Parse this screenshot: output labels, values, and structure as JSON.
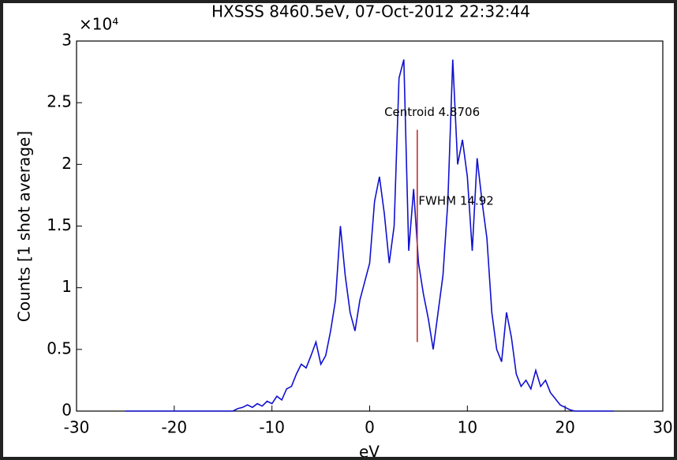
{
  "chart_data": {
    "type": "line",
    "title": "HXSSS  8460.5eV, 07-Oct-2012 22:32:44",
    "x_label": "eV",
    "y_label": "Counts [1 shot average]",
    "y_multiplier": "×10⁴",
    "x": [
      -25,
      -24.5,
      -24,
      -23.5,
      -23,
      -22.5,
      -22,
      -21.5,
      -21,
      -20.5,
      -20,
      -19.5,
      -19,
      -18.5,
      -18,
      -17.5,
      -17,
      -16.5,
      -16,
      -15.5,
      -15,
      -14.5,
      -14,
      -13.5,
      -13,
      -12.5,
      -12,
      -11.5,
      -11,
      -10.5,
      -10,
      -9.5,
      -9,
      -8.5,
      -8,
      -7.5,
      -7,
      -6.5,
      -6,
      -5.5,
      -5,
      -4.5,
      -4,
      -3.5,
      -3,
      -2.5,
      -2,
      -1.5,
      -1,
      -0.5,
      0,
      0.5,
      1,
      1.5,
      2,
      2.5,
      3,
      3.5,
      4,
      4.5,
      5,
      5.5,
      6,
      6.5,
      7,
      7.5,
      8,
      8.5,
      9,
      9.5,
      10,
      10.5,
      11,
      11.5,
      12,
      12.5,
      13,
      13.5,
      14,
      14.5,
      15,
      15.5,
      16,
      16.5,
      17,
      17.5,
      18,
      18.5,
      19,
      19.5,
      20,
      20.5,
      21,
      21.5,
      22,
      22.5,
      23,
      23.5,
      24,
      24.5,
      25
    ],
    "series": [
      {
        "color": "#1010d0",
        "values": [
          0,
          0,
          0,
          0,
          0,
          0,
          0,
          0,
          0,
          0,
          0,
          0,
          0,
          0,
          0,
          0,
          0,
          0,
          0,
          0,
          0,
          0,
          0,
          200,
          300,
          500,
          300,
          600,
          400,
          800,
          600,
          1200,
          900,
          1800,
          2000,
          3000,
          3800,
          3500,
          4500,
          5600,
          3800,
          4500,
          6500,
          9000,
          15000,
          11000,
          8000,
          6500,
          9000,
          10500,
          12000,
          17000,
          19000,
          16000,
          12000,
          15000,
          27000,
          28500,
          13000,
          18000,
          12000,
          9500,
          7500,
          5000,
          8000,
          11000,
          17000,
          28500,
          20000,
          22000,
          19000,
          13000,
          20500,
          17000,
          14000,
          8000,
          5000,
          4000,
          8000,
          6000,
          3000,
          2000,
          2500,
          1800,
          3300,
          2000,
          2500,
          1500,
          1000,
          500,
          300,
          100,
          0,
          0,
          0,
          0,
          0,
          0,
          0,
          0,
          0
        ]
      }
    ],
    "marker": {
      "x": 4.87,
      "y": [
        5600,
        22800
      ],
      "color": "#c03030"
    },
    "annotations": [
      {
        "text": "Centroid  4.8706",
        "x": 1.5,
        "y": 24200
      },
      {
        "text": "FWHM 14.92",
        "x": 5,
        "y": 17000
      }
    ],
    "xlim": [
      -30,
      30
    ],
    "xticks": [
      -30,
      -20,
      -10,
      0,
      10,
      20,
      30
    ],
    "ylim": [
      0,
      30000
    ],
    "yticks": [
      0,
      {
        "value": 5000,
        "label": "0.5"
      },
      {
        "value": 10000,
        "label": "1"
      },
      {
        "value": 15000,
        "label": "1.5"
      },
      {
        "value": 20000,
        "label": "2"
      },
      {
        "value": 25000,
        "label": "2.5"
      },
      {
        "value": 30000,
        "label": "3"
      }
    ]
  }
}
